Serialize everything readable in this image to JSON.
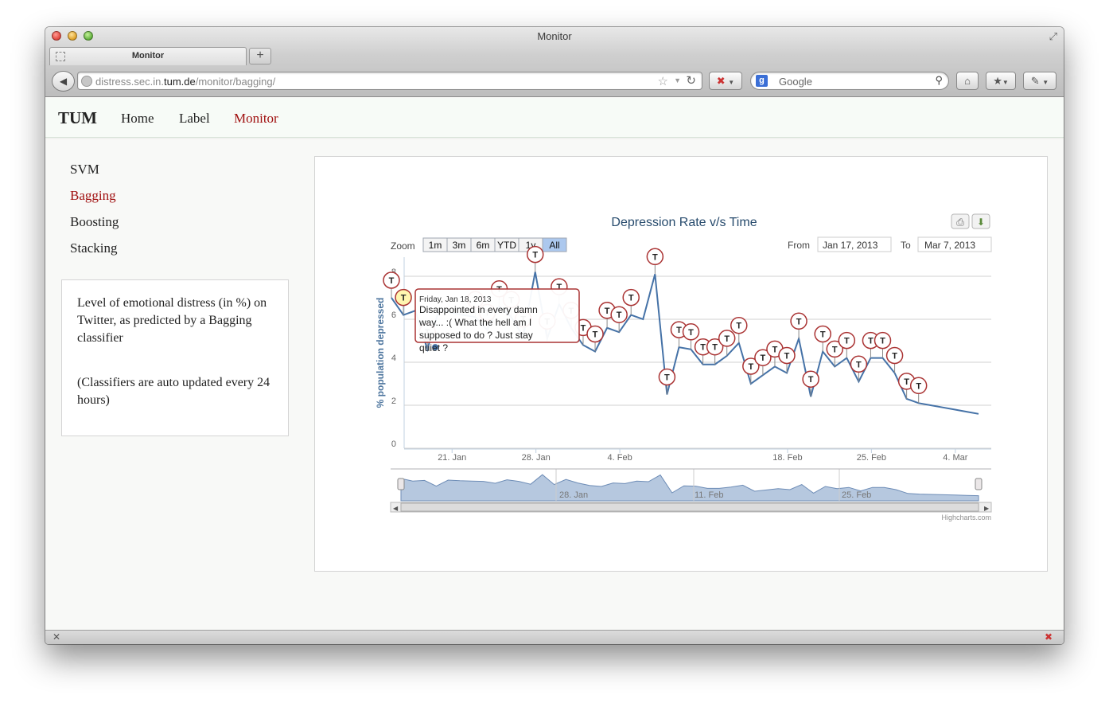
{
  "window": {
    "title": "Monitor"
  },
  "tab": {
    "title": "Monitor",
    "new_tab_label": "+"
  },
  "address": {
    "prefix": "distress.sec.in.",
    "domain": "tum.de",
    "path": "/monitor/bagging/"
  },
  "search": {
    "engine": "Google",
    "placeholder": "Google"
  },
  "nav": {
    "brand": "TUM",
    "home": "Home",
    "label": "Label",
    "monitor": "Monitor",
    "active_color": "#a01010"
  },
  "sidebar": {
    "items": [
      "SVM",
      "Bagging",
      "Boosting",
      "Stacking"
    ],
    "active_index": 1
  },
  "info": {
    "description": "Level of emotional distress (in %) on Twitter, as predicted by a Bagging classifier",
    "note": "(Classifiers are auto updated every 24 hours)"
  },
  "chart_data": {
    "type": "line",
    "title": "Depression Rate v/s Time",
    "ylabel": "% population depressed",
    "ylim": [
      0,
      8
    ],
    "yticks": [
      "0",
      "2",
      "4",
      "6",
      "8"
    ],
    "xticks": [
      {
        "date": "2013-01-21",
        "label": "21. Jan"
      },
      {
        "date": "2013-01-28",
        "label": "28. Jan"
      },
      {
        "date": "2013-02-04",
        "label": "4. Feb"
      },
      {
        "date": "2013-02-18",
        "label": "18. Feb"
      },
      {
        "date": "2013-02-25",
        "label": "25. Feb"
      },
      {
        "date": "2013-03-04",
        "label": "4. Mar"
      }
    ],
    "zoom": {
      "label": "Zoom",
      "buttons": [
        "1m",
        "3m",
        "6m",
        "YTD",
        "1y",
        "All"
      ],
      "selected": "All"
    },
    "range": {
      "from_label": "From",
      "from": "Jan 17, 2013",
      "to_label": "To",
      "to": "Mar 7, 2013"
    },
    "series": [
      {
        "color": "#4572a7",
        "x": [
          "2013-01-17",
          "2013-01-18",
          "2013-01-19",
          "2013-01-20",
          "2013-01-21",
          "2013-01-22",
          "2013-01-23",
          "2013-01-24",
          "2013-01-25",
          "2013-01-26",
          "2013-01-27",
          "2013-01-28",
          "2013-01-29",
          "2013-01-30",
          "2013-01-31",
          "2013-02-01",
          "2013-02-02",
          "2013-02-03",
          "2013-02-04",
          "2013-02-05",
          "2013-02-06",
          "2013-02-07",
          "2013-02-08",
          "2013-02-09",
          "2013-02-10",
          "2013-02-11",
          "2013-02-12",
          "2013-02-13",
          "2013-02-14",
          "2013-02-15",
          "2013-02-16",
          "2013-02-17",
          "2013-02-18",
          "2013-02-19",
          "2013-02-20",
          "2013-02-21",
          "2013-02-22",
          "2013-02-23",
          "2013-02-24",
          "2013-02-25",
          "2013-02-26",
          "2013-02-27",
          "2013-02-28",
          "2013-03-01",
          "2013-03-02",
          "2013-03-03",
          "2013-03-04",
          "2013-03-05",
          "2013-03-06",
          "2013-03-07"
        ],
        "y": [
          7.0,
          6.2,
          6.4,
          4.6,
          6.5,
          6.3,
          6.2,
          6.1,
          5.5,
          6.6,
          6.1,
          5.2,
          8.2,
          5.1,
          6.7,
          5.6,
          4.8,
          4.5,
          5.6,
          5.4,
          6.2,
          6.0,
          8.1,
          2.5,
          4.7,
          4.6,
          3.9,
          3.9,
          4.3,
          4.9,
          3.0,
          3.4,
          3.8,
          3.5,
          5.1,
          2.4,
          4.5,
          3.8,
          4.2,
          3.1,
          4.2,
          4.2,
          3.5,
          2.3,
          2.1,
          2.0,
          1.9,
          1.8,
          1.7,
          1.6
        ]
      }
    ],
    "flags": [
      "2013-01-17",
      "2013-01-18",
      "2013-01-20",
      "2013-01-24",
      "2013-01-25",
      "2013-01-26",
      "2013-01-27",
      "2013-01-28",
      "2013-01-29",
      "2013-01-30",
      "2013-01-31",
      "2013-02-01",
      "2013-02-02",
      "2013-02-03",
      "2013-02-04",
      "2013-02-05",
      "2013-02-06",
      "2013-02-08",
      "2013-02-09",
      "2013-02-10",
      "2013-02-11",
      "2013-02-12",
      "2013-02-13",
      "2013-02-14",
      "2013-02-15",
      "2013-02-16",
      "2013-02-17",
      "2013-02-18",
      "2013-02-19",
      "2013-02-20",
      "2013-02-21",
      "2013-02-22",
      "2013-02-23",
      "2013-02-24",
      "2013-02-25",
      "2013-02-26",
      "2013-02-27",
      "2013-02-28",
      "2013-03-01",
      "2013-03-02"
    ],
    "flag_symbol": "T",
    "highlighted_flag": "2013-01-18",
    "tooltip": {
      "date": "Friday, Jan 18, 2013",
      "text": "Disappointed in every damn way... :( What the hell am I supposed to do ? Just stay quiet ?"
    },
    "navigator": {
      "labels": [
        "28. Jan",
        "11. Feb",
        "25. Feb"
      ]
    },
    "credits": "Highcharts.com",
    "grid": true
  }
}
